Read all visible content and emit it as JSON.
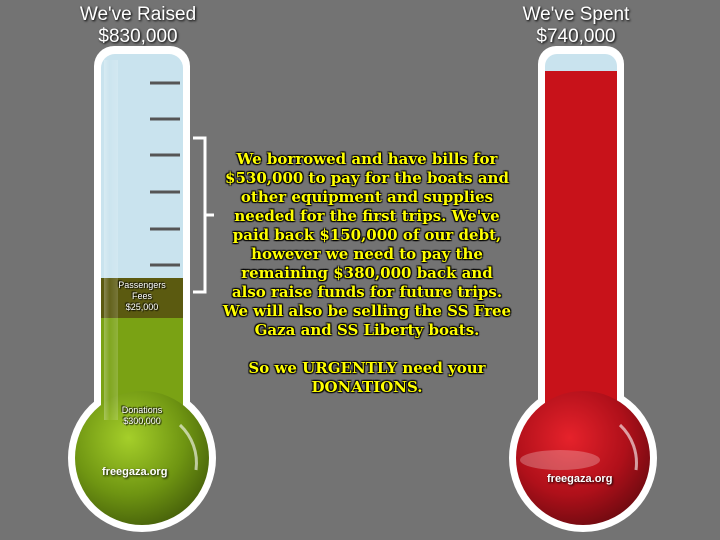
{
  "raised": {
    "heading": "We've Raised",
    "amount": "$830,000",
    "segments": [
      {
        "label_line1": "Passengers",
        "label_line2": "Fees",
        "amount": "$25,000"
      },
      {
        "label_line1": "Donations",
        "amount": "$300,000"
      }
    ],
    "watermark": "freegaza.org"
  },
  "spent": {
    "heading": "We've Spent",
    "amount": "$740,000",
    "watermark": "freegaza.org"
  },
  "message": {
    "paragraph1": "We borrowed and have bills for $530,000 to pay for the boats and other equipment and supplies needed for the first trips.  We've paid back $150,000 of our debt, however we need to pay the remaining $380,000 back and also raise funds for future trips.  We will also be selling the SS Free Gaza and SS Liberty boats.",
    "paragraph2": "So we URGENTLY need your DONATIONS."
  },
  "colors": {
    "background": "#737373",
    "tube_empty": "#c9e3ee",
    "passenger_fee_fill": "#5b5a10",
    "donation_fill": "#7aa214",
    "spent_fill": "#c8121a",
    "message_text": "#ffff00"
  }
}
